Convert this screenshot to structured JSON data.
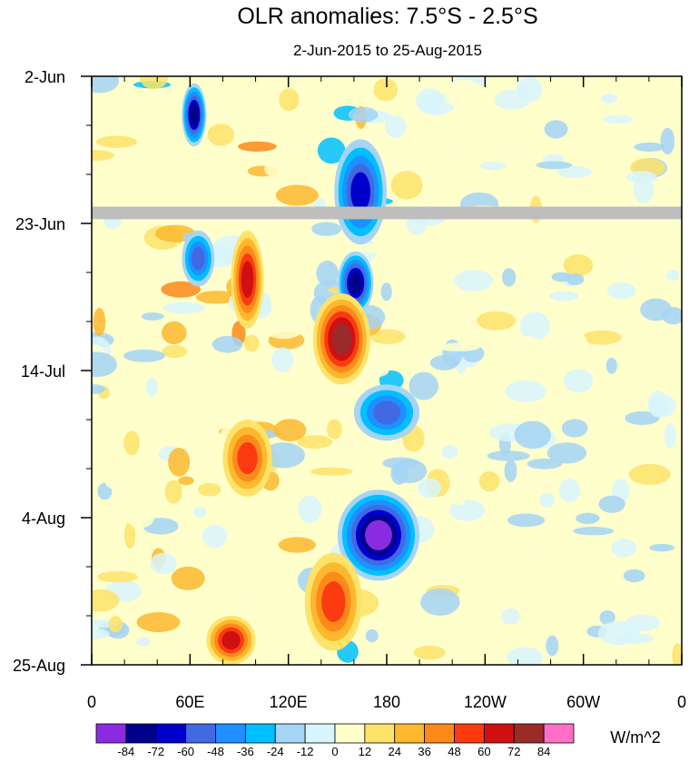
{
  "chart_data": {
    "type": "heatmap",
    "title": "OLR anomalies: 7.5°S - 2.5°S",
    "subtitle": "2-Jun-2015 to 25-Aug-2015",
    "x_ticks": [
      {
        "label": "0",
        "lon": 0
      },
      {
        "label": "60E",
        "lon": 60
      },
      {
        "label": "120E",
        "lon": 120
      },
      {
        "label": "180",
        "lon": 180
      },
      {
        "label": "120W",
        "lon": 240
      },
      {
        "label": "60W",
        "lon": 300
      },
      {
        "label": "0",
        "lon": 360
      }
    ],
    "xlim": [
      0,
      360
    ],
    "y_ticks": [
      {
        "label": "2-Jun",
        "day": 0
      },
      {
        "label": "23-Jun",
        "day": 21
      },
      {
        "label": "14-Jul",
        "day": 42
      },
      {
        "label": "4-Aug",
        "day": 63
      },
      {
        "label": "25-Aug",
        "day": 84
      }
    ],
    "ylim": [
      0,
      84
    ],
    "colorbar": {
      "label": "W/m^2",
      "levels": [
        "-84",
        "-72",
        "-60",
        "-48",
        "-36",
        "-24",
        "-12",
        "0",
        "12",
        "24",
        "36",
        "48",
        "60",
        "72",
        "84"
      ],
      "colors": [
        "#8a2be2",
        "#00008b",
        "#0000cd",
        "#4169e1",
        "#1e90ff",
        "#00bfff",
        "#a5d4f5",
        "#d8f4fc",
        "#ffffcc",
        "#fde36a",
        "#fdb82e",
        "#fc8a1a",
        "#fb3b0f",
        "#d01010",
        "#9b2a2a",
        "#ff6ec7"
      ]
    },
    "features": [
      {
        "name": "strong negative band",
        "lon": [
          148,
          180
        ],
        "day": [
          9,
          24
        ],
        "value": -60
      },
      {
        "name": "strong negative band",
        "lon": [
          150,
          172
        ],
        "day": [
          25,
          34
        ],
        "value": -72
      },
      {
        "name": "strong negative band",
        "lon": [
          150,
          200
        ],
        "day": [
          59,
          72
        ],
        "value": -84
      },
      {
        "name": "negative patch",
        "lon": [
          55,
          70
        ],
        "day": [
          1,
          10
        ],
        "value": -72
      },
      {
        "name": "negative patch",
        "lon": [
          55,
          75
        ],
        "day": [
          22,
          30
        ],
        "value": -48
      },
      {
        "name": "negative patch",
        "lon": [
          160,
          200
        ],
        "day": [
          44,
          52
        ],
        "value": -48
      },
      {
        "name": "positive band",
        "lon": [
          85,
          105
        ],
        "day": [
          22,
          36
        ],
        "value": 60
      },
      {
        "name": "positive band",
        "lon": [
          135,
          170
        ],
        "day": [
          31,
          44
        ],
        "value": 72
      },
      {
        "name": "positive band",
        "lon": [
          80,
          110
        ],
        "day": [
          49,
          60
        ],
        "value": 48
      },
      {
        "name": "positive band",
        "lon": [
          130,
          165
        ],
        "day": [
          68,
          82
        ],
        "value": 48
      },
      {
        "name": "positive band",
        "lon": [
          70,
          100
        ],
        "day": [
          77,
          84
        ],
        "value": 60
      }
    ],
    "missing_rows_days": [
      19.5
    ]
  }
}
